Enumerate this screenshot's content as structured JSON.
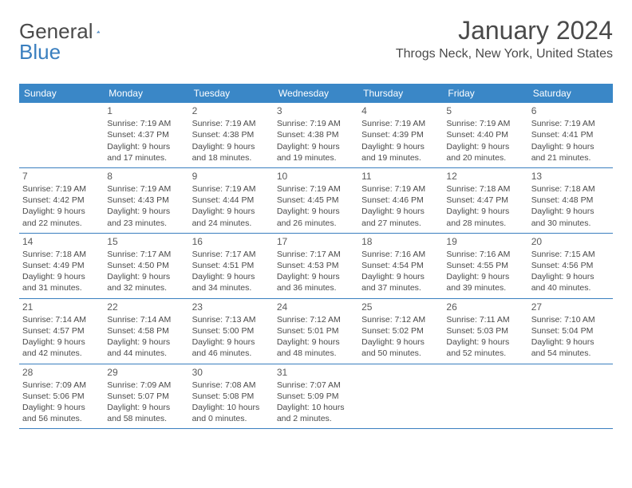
{
  "brand": {
    "part1": "General",
    "part2": "Blue"
  },
  "title": "January 2024",
  "location": "Throgs Neck, New York, United States",
  "colors": {
    "header_bg": "#3a87c7",
    "border": "#3a7fbf",
    "text": "#4a4a4a",
    "white": "#ffffff"
  },
  "weekdays": [
    "Sunday",
    "Monday",
    "Tuesday",
    "Wednesday",
    "Thursday",
    "Friday",
    "Saturday"
  ],
  "weeks": [
    [
      null,
      {
        "n": "1",
        "sr": "Sunrise: 7:19 AM",
        "ss": "Sunset: 4:37 PM",
        "d1": "Daylight: 9 hours",
        "d2": "and 17 minutes."
      },
      {
        "n": "2",
        "sr": "Sunrise: 7:19 AM",
        "ss": "Sunset: 4:38 PM",
        "d1": "Daylight: 9 hours",
        "d2": "and 18 minutes."
      },
      {
        "n": "3",
        "sr": "Sunrise: 7:19 AM",
        "ss": "Sunset: 4:38 PM",
        "d1": "Daylight: 9 hours",
        "d2": "and 19 minutes."
      },
      {
        "n": "4",
        "sr": "Sunrise: 7:19 AM",
        "ss": "Sunset: 4:39 PM",
        "d1": "Daylight: 9 hours",
        "d2": "and 19 minutes."
      },
      {
        "n": "5",
        "sr": "Sunrise: 7:19 AM",
        "ss": "Sunset: 4:40 PM",
        "d1": "Daylight: 9 hours",
        "d2": "and 20 minutes."
      },
      {
        "n": "6",
        "sr": "Sunrise: 7:19 AM",
        "ss": "Sunset: 4:41 PM",
        "d1": "Daylight: 9 hours",
        "d2": "and 21 minutes."
      }
    ],
    [
      {
        "n": "7",
        "sr": "Sunrise: 7:19 AM",
        "ss": "Sunset: 4:42 PM",
        "d1": "Daylight: 9 hours",
        "d2": "and 22 minutes."
      },
      {
        "n": "8",
        "sr": "Sunrise: 7:19 AM",
        "ss": "Sunset: 4:43 PM",
        "d1": "Daylight: 9 hours",
        "d2": "and 23 minutes."
      },
      {
        "n": "9",
        "sr": "Sunrise: 7:19 AM",
        "ss": "Sunset: 4:44 PM",
        "d1": "Daylight: 9 hours",
        "d2": "and 24 minutes."
      },
      {
        "n": "10",
        "sr": "Sunrise: 7:19 AM",
        "ss": "Sunset: 4:45 PM",
        "d1": "Daylight: 9 hours",
        "d2": "and 26 minutes."
      },
      {
        "n": "11",
        "sr": "Sunrise: 7:19 AM",
        "ss": "Sunset: 4:46 PM",
        "d1": "Daylight: 9 hours",
        "d2": "and 27 minutes."
      },
      {
        "n": "12",
        "sr": "Sunrise: 7:18 AM",
        "ss": "Sunset: 4:47 PM",
        "d1": "Daylight: 9 hours",
        "d2": "and 28 minutes."
      },
      {
        "n": "13",
        "sr": "Sunrise: 7:18 AM",
        "ss": "Sunset: 4:48 PM",
        "d1": "Daylight: 9 hours",
        "d2": "and 30 minutes."
      }
    ],
    [
      {
        "n": "14",
        "sr": "Sunrise: 7:18 AM",
        "ss": "Sunset: 4:49 PM",
        "d1": "Daylight: 9 hours",
        "d2": "and 31 minutes."
      },
      {
        "n": "15",
        "sr": "Sunrise: 7:17 AM",
        "ss": "Sunset: 4:50 PM",
        "d1": "Daylight: 9 hours",
        "d2": "and 32 minutes."
      },
      {
        "n": "16",
        "sr": "Sunrise: 7:17 AM",
        "ss": "Sunset: 4:51 PM",
        "d1": "Daylight: 9 hours",
        "d2": "and 34 minutes."
      },
      {
        "n": "17",
        "sr": "Sunrise: 7:17 AM",
        "ss": "Sunset: 4:53 PM",
        "d1": "Daylight: 9 hours",
        "d2": "and 36 minutes."
      },
      {
        "n": "18",
        "sr": "Sunrise: 7:16 AM",
        "ss": "Sunset: 4:54 PM",
        "d1": "Daylight: 9 hours",
        "d2": "and 37 minutes."
      },
      {
        "n": "19",
        "sr": "Sunrise: 7:16 AM",
        "ss": "Sunset: 4:55 PM",
        "d1": "Daylight: 9 hours",
        "d2": "and 39 minutes."
      },
      {
        "n": "20",
        "sr": "Sunrise: 7:15 AM",
        "ss": "Sunset: 4:56 PM",
        "d1": "Daylight: 9 hours",
        "d2": "and 40 minutes."
      }
    ],
    [
      {
        "n": "21",
        "sr": "Sunrise: 7:14 AM",
        "ss": "Sunset: 4:57 PM",
        "d1": "Daylight: 9 hours",
        "d2": "and 42 minutes."
      },
      {
        "n": "22",
        "sr": "Sunrise: 7:14 AM",
        "ss": "Sunset: 4:58 PM",
        "d1": "Daylight: 9 hours",
        "d2": "and 44 minutes."
      },
      {
        "n": "23",
        "sr": "Sunrise: 7:13 AM",
        "ss": "Sunset: 5:00 PM",
        "d1": "Daylight: 9 hours",
        "d2": "and 46 minutes."
      },
      {
        "n": "24",
        "sr": "Sunrise: 7:12 AM",
        "ss": "Sunset: 5:01 PM",
        "d1": "Daylight: 9 hours",
        "d2": "and 48 minutes."
      },
      {
        "n": "25",
        "sr": "Sunrise: 7:12 AM",
        "ss": "Sunset: 5:02 PM",
        "d1": "Daylight: 9 hours",
        "d2": "and 50 minutes."
      },
      {
        "n": "26",
        "sr": "Sunrise: 7:11 AM",
        "ss": "Sunset: 5:03 PM",
        "d1": "Daylight: 9 hours",
        "d2": "and 52 minutes."
      },
      {
        "n": "27",
        "sr": "Sunrise: 7:10 AM",
        "ss": "Sunset: 5:04 PM",
        "d1": "Daylight: 9 hours",
        "d2": "and 54 minutes."
      }
    ],
    [
      {
        "n": "28",
        "sr": "Sunrise: 7:09 AM",
        "ss": "Sunset: 5:06 PM",
        "d1": "Daylight: 9 hours",
        "d2": "and 56 minutes."
      },
      {
        "n": "29",
        "sr": "Sunrise: 7:09 AM",
        "ss": "Sunset: 5:07 PM",
        "d1": "Daylight: 9 hours",
        "d2": "and 58 minutes."
      },
      {
        "n": "30",
        "sr": "Sunrise: 7:08 AM",
        "ss": "Sunset: 5:08 PM",
        "d1": "Daylight: 10 hours",
        "d2": "and 0 minutes."
      },
      {
        "n": "31",
        "sr": "Sunrise: 7:07 AM",
        "ss": "Sunset: 5:09 PM",
        "d1": "Daylight: 10 hours",
        "d2": "and 2 minutes."
      },
      null,
      null,
      null
    ]
  ]
}
